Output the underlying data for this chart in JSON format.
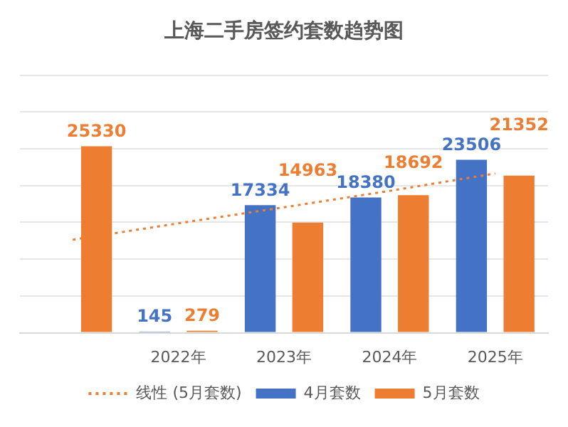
{
  "chart_data": {
    "type": "bar",
    "title": "上海二手房签约套数趋势图",
    "categories": [
      null,
      "2022年",
      "2023年",
      "2024年",
      "2025年"
    ],
    "series": [
      {
        "name": "4月套数",
        "color": "#4472c4",
        "values": [
          null,
          145,
          17334,
          18380,
          23506
        ],
        "value_labels": [
          null,
          "145",
          "17334",
          "18380",
          "23506"
        ]
      },
      {
        "name": "5月套数",
        "color": "#ed7d31",
        "values": [
          25330,
          279,
          14963,
          18692,
          21352
        ],
        "value_labels": [
          "25330",
          "279",
          "14963",
          "18692",
          "21352"
        ]
      },
      {
        "name": "线性 (5月套数)",
        "type": "line",
        "color": "#ed7d31",
        "line_style": "dotted",
        "marker": "none",
        "values": [
          12640,
          14870,
          17050,
          19280,
          21640
        ]
      }
    ],
    "ylim": [
      0,
      35000
    ],
    "yticks": [
      {
        "value": 0,
        "label": null
      },
      {
        "value": 5000,
        "label": null
      },
      {
        "value": 10000,
        "label": null
      },
      {
        "value": 15000,
        "label": null
      },
      {
        "value": 20000,
        "label": null
      },
      {
        "value": 25000,
        "label": null
      },
      {
        "value": 30000,
        "label": null
      },
      {
        "value": 35000,
        "label": null
      }
    ],
    "tick_labels": "x",
    "grid": "y",
    "legend": "bottom"
  }
}
